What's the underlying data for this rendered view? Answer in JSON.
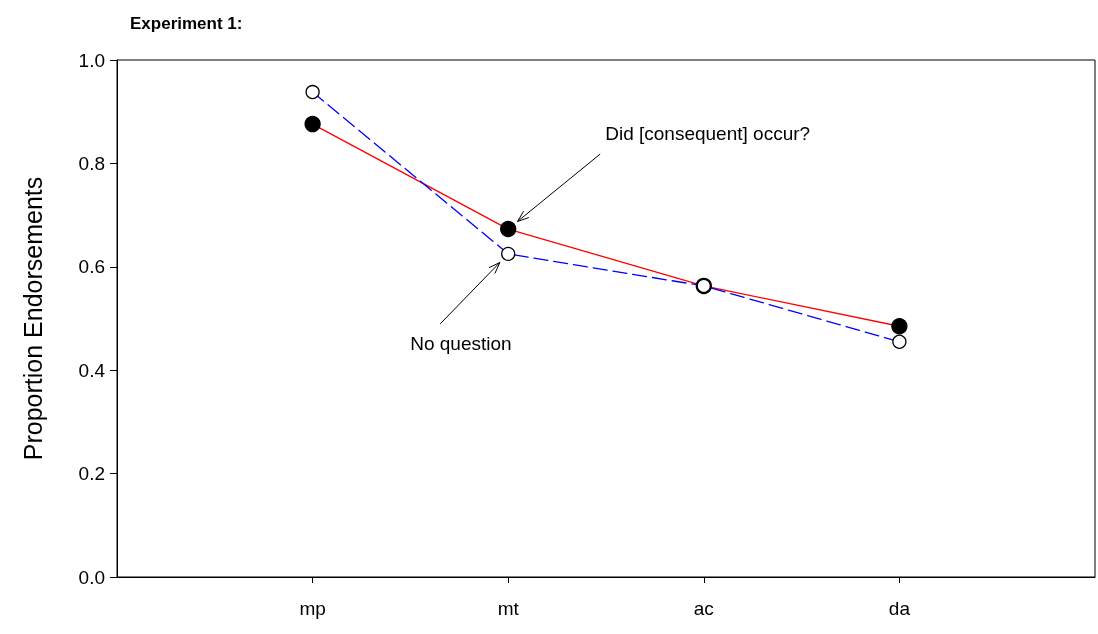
{
  "chart_data": {
    "type": "line",
    "title": "Experiment 1:",
    "ylabel": "Proportion Endorsements",
    "categories": [
      "mp",
      "mt",
      "ac",
      "da"
    ],
    "series": [
      {
        "name": "Did [consequent] occur?",
        "color": "#ff0000",
        "values": [
          0.876,
          0.673,
          0.563,
          0.485
        ],
        "line_style": "solid"
      },
      {
        "name": "No question",
        "color": "#0000ff",
        "values": [
          0.938,
          0.625,
          0.563,
          0.455
        ],
        "line_style": "dashed"
      }
    ],
    "ylim": [
      0,
      1
    ],
    "yticks": [
      {
        "value": 0,
        "label": "0.0"
      },
      {
        "value": 0.2,
        "label": "0.2"
      },
      {
        "value": 0.4,
        "label": "0.4"
      },
      {
        "value": 0.6,
        "label": "0.6"
      },
      {
        "value": 0.8,
        "label": "0.8"
      },
      {
        "value": 1,
        "label": "1.0"
      }
    ],
    "grid": false,
    "marker": "circle"
  }
}
